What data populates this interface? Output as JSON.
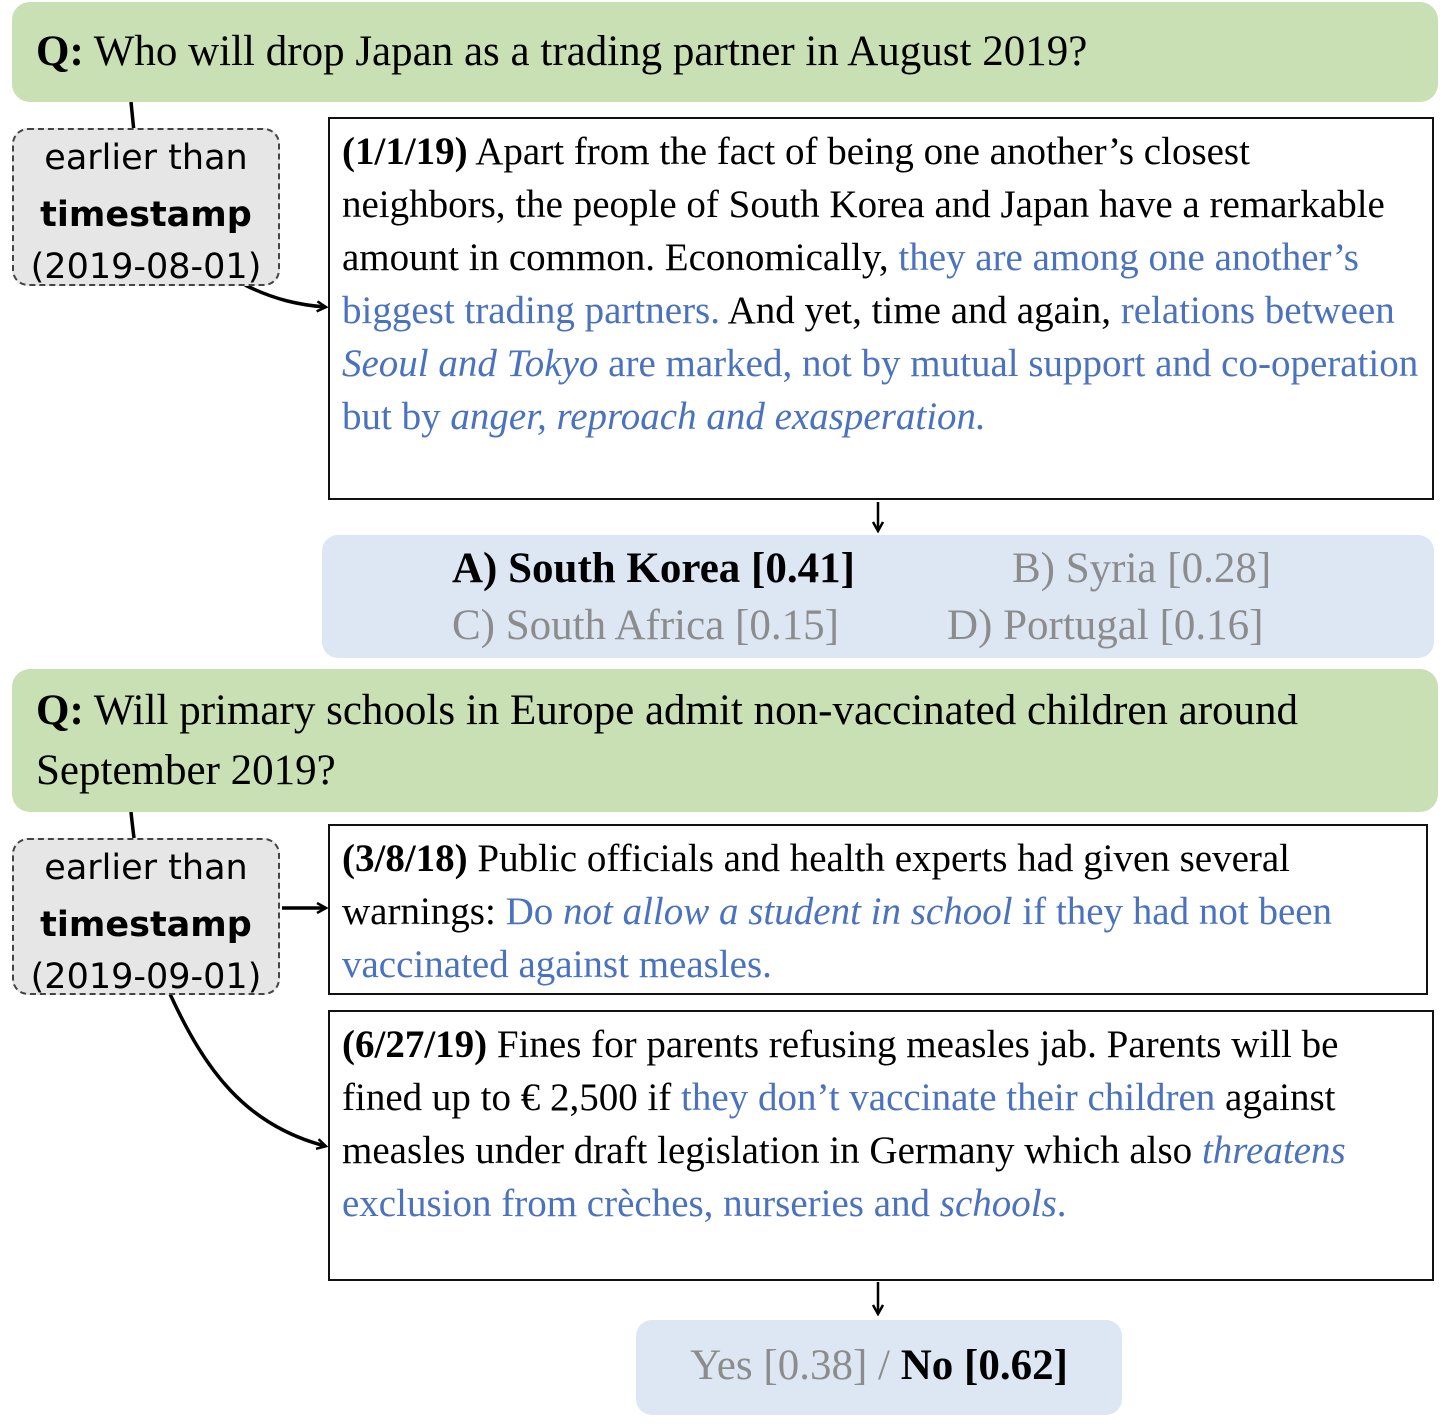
{
  "q1": {
    "prefix": "Q:",
    "text": "Who will drop Japan as a trading partner in August 2019?",
    "timestamp": {
      "line1": "earlier than",
      "line2": "timestamp",
      "line3": "(2019-08-01)"
    },
    "doc": {
      "date": "(1/1/19)",
      "t1": " Apart from the fact of being one another’s closest neighbors, the people of South Korea and Japan have a remarkable amount in common. Economically, ",
      "b1": "they are among one another’s biggest trading partners.",
      "t2": " And yet, time and again, ",
      "b2": "relations between ",
      "b2i": "Seoul and Tokyo",
      "b3": " are marked, not by mutual support and co-operation but by ",
      "b3i": "anger, reproach and exasperation."
    },
    "answers": {
      "a": "A) South Korea [0.41]",
      "b": "B) Syria [0.28]",
      "c": "C) South Africa [0.15]",
      "d": "D) Portugal [0.16]"
    }
  },
  "q2": {
    "prefix": "Q:",
    "text": "Will primary schools in Europe admit non-vaccinated children around September 2019?",
    "timestamp": {
      "line1": "earlier than",
      "line2": "timestamp",
      "line3": "(2019-09-01)"
    },
    "doc1": {
      "date": "(3/8/18)",
      "t1": " Public officials and health experts had given several warnings: ",
      "b1": "Do ",
      "b1i": "not allow a student in school",
      "b2": " if they had not been vaccinated against measles."
    },
    "doc2": {
      "date": "(6/27/19)",
      "t1": "  Fines for parents refusing measles jab. Parents will be fined up to € 2,500 if ",
      "b1": "they don’t vaccinate their children",
      "t2": " against measles under draft legislation in Germany which also ",
      "b2i": "threatens",
      "b3": " exclusion from crèches, nurseries and ",
      "b3i": "schools",
      "b4": "."
    },
    "answers": {
      "yes": "Yes [0.38]",
      "sep": " / ",
      "no": "No [0.62]"
    }
  }
}
